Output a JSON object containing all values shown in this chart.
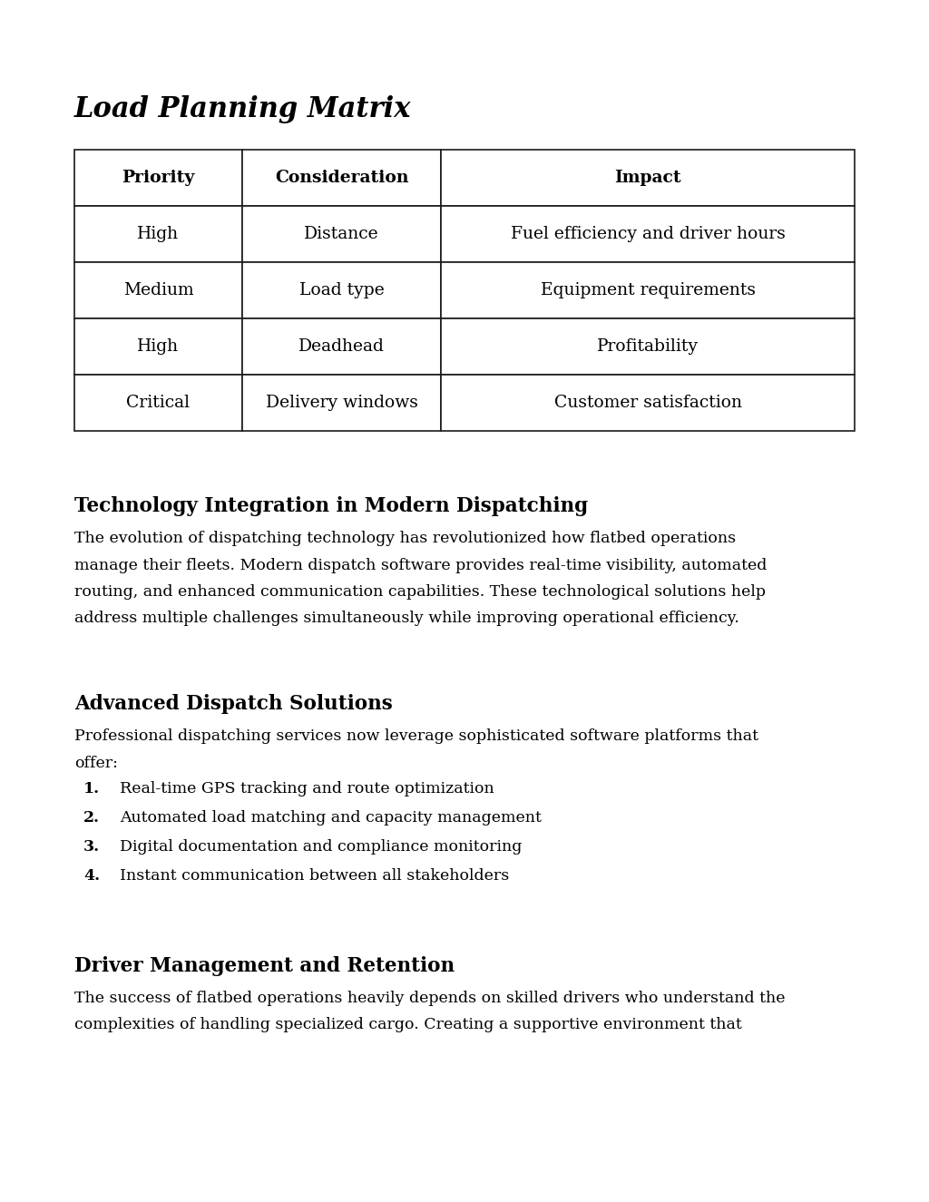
{
  "title": "Load Planning Matrix",
  "table_headers": [
    "Priority",
    "Consideration",
    "Impact"
  ],
  "table_rows": [
    [
      "High",
      "Distance",
      "Fuel efficiency and driver hours"
    ],
    [
      "Medium",
      "Load type",
      "Equipment requirements"
    ],
    [
      "High",
      "Deadhead",
      "Profitability"
    ],
    [
      "Critical",
      "Delivery windows",
      "Customer satisfaction"
    ]
  ],
  "section1_heading": "Technology Integration in Modern Dispatching",
  "section1_body_lines": [
    "The evolution of dispatching technology has revolutionized how flatbed operations",
    "manage their fleets. Modern dispatch software provides real-time visibility, automated",
    "routing, and enhanced communication capabilities. These technological solutions help",
    "address multiple challenges simultaneously while improving operational efficiency."
  ],
  "section2_heading": "Advanced Dispatch Solutions",
  "section2_body_line1": "Professional dispatching services now leverage sophisticated software platforms that",
  "section2_body_line2": "offer:",
  "section2_list": [
    "Real-time GPS tracking and route optimization",
    "Automated load matching and capacity management",
    "Digital documentation and compliance monitoring",
    "Instant communication between all stakeholders"
  ],
  "section3_heading": "Driver Management and Retention",
  "section3_body_lines": [
    "The success of flatbed operations heavily depends on skilled drivers who understand the",
    "complexities of handling specialized cargo. Creating a supportive environment that"
  ],
  "bg_color": "#ffffff",
  "text_color": "#000000",
  "table_border_color": "#1a1a1a"
}
